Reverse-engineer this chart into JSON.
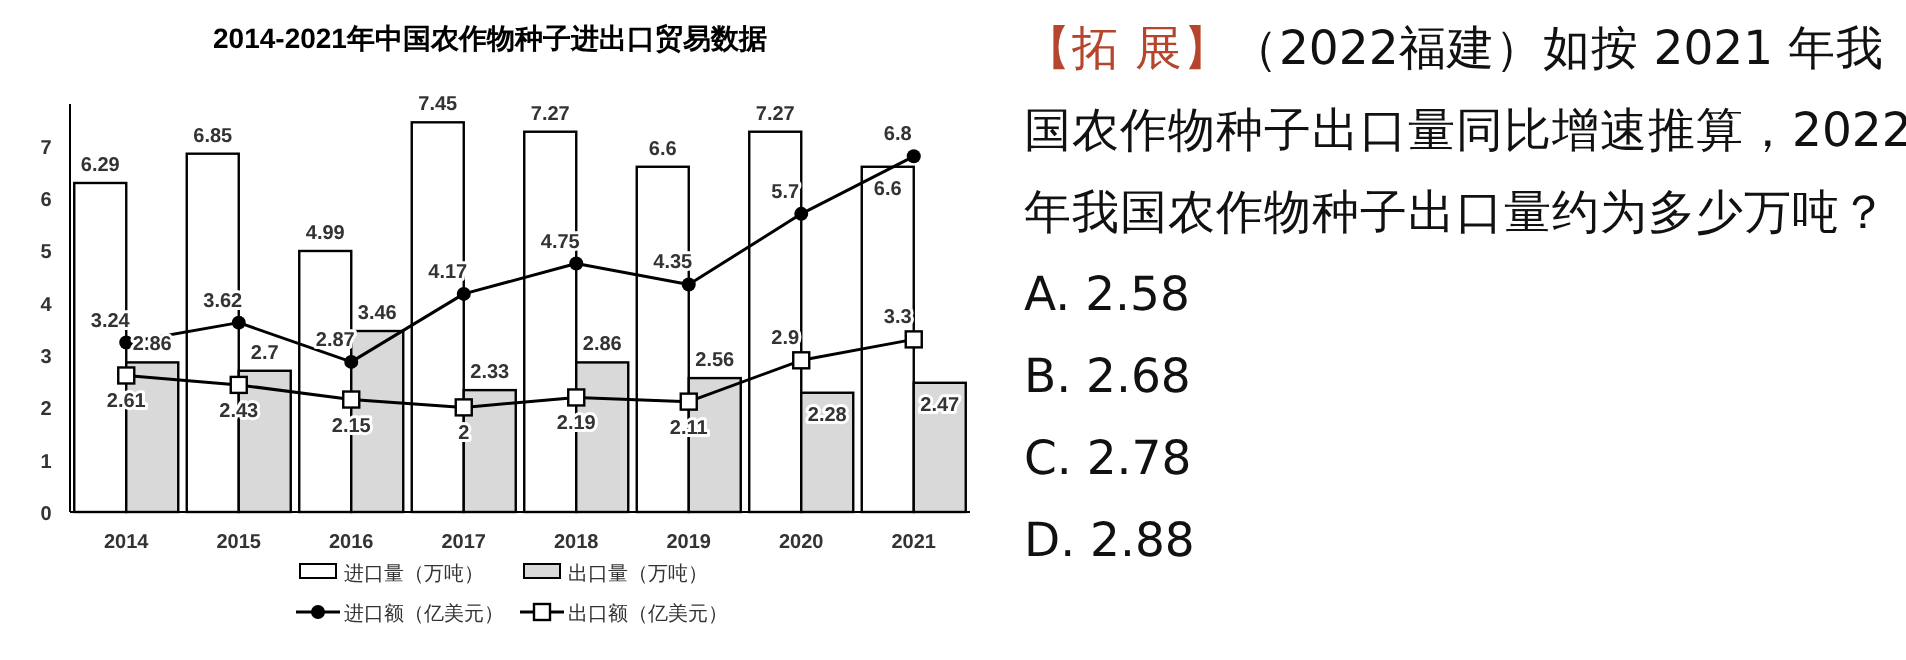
{
  "chart_data": {
    "type": "bar",
    "title": "2014-2021年中国农作物种子进出口贸易数据",
    "categories": [
      "2014",
      "2015",
      "2016",
      "2017",
      "2018",
      "2019",
      "2020",
      "2021"
    ],
    "series": [
      {
        "name": "进口量（万吨）",
        "color": "#ffffff",
        "values": [
          6.29,
          6.85,
          4.99,
          7.45,
          7.27,
          6.6,
          7.27,
          6.6
        ]
      },
      {
        "name": "出口量（万吨）",
        "color": "#d9d9d9",
        "values": [
          2.86,
          2.7,
          3.46,
          2.33,
          2.86,
          2.56,
          2.28,
          2.47
        ]
      },
      {
        "name": "进口额（亿美元）",
        "type": "line",
        "color": "#000000",
        "marker": "circle",
        "values": [
          3.24,
          3.62,
          2.87,
          4.17,
          4.75,
          4.35,
          5.7,
          6.8
        ]
      },
      {
        "name": "出口额（亿美元）",
        "type": "line",
        "color": "#000000",
        "marker": "square",
        "values": [
          2.61,
          2.43,
          2.15,
          2,
          2.19,
          2.11,
          2.9,
          3.3
        ]
      }
    ],
    "ylim": [
      0,
      7.8
    ],
    "yticks": [
      0,
      1,
      2,
      3,
      4,
      5,
      6,
      7
    ],
    "grid": false,
    "legend": "bottom",
    "data_labels": true,
    "annotations": [
      "【拓 展】",
      "（2022福建）如按 2021 年我国农作物种子出口量同比增速推算，2022 年我国农作物种子出口量约为多少万吨？",
      "A. 2.58",
      "B. 2.68",
      "C. 2.78",
      "D. 2.88"
    ]
  }
}
